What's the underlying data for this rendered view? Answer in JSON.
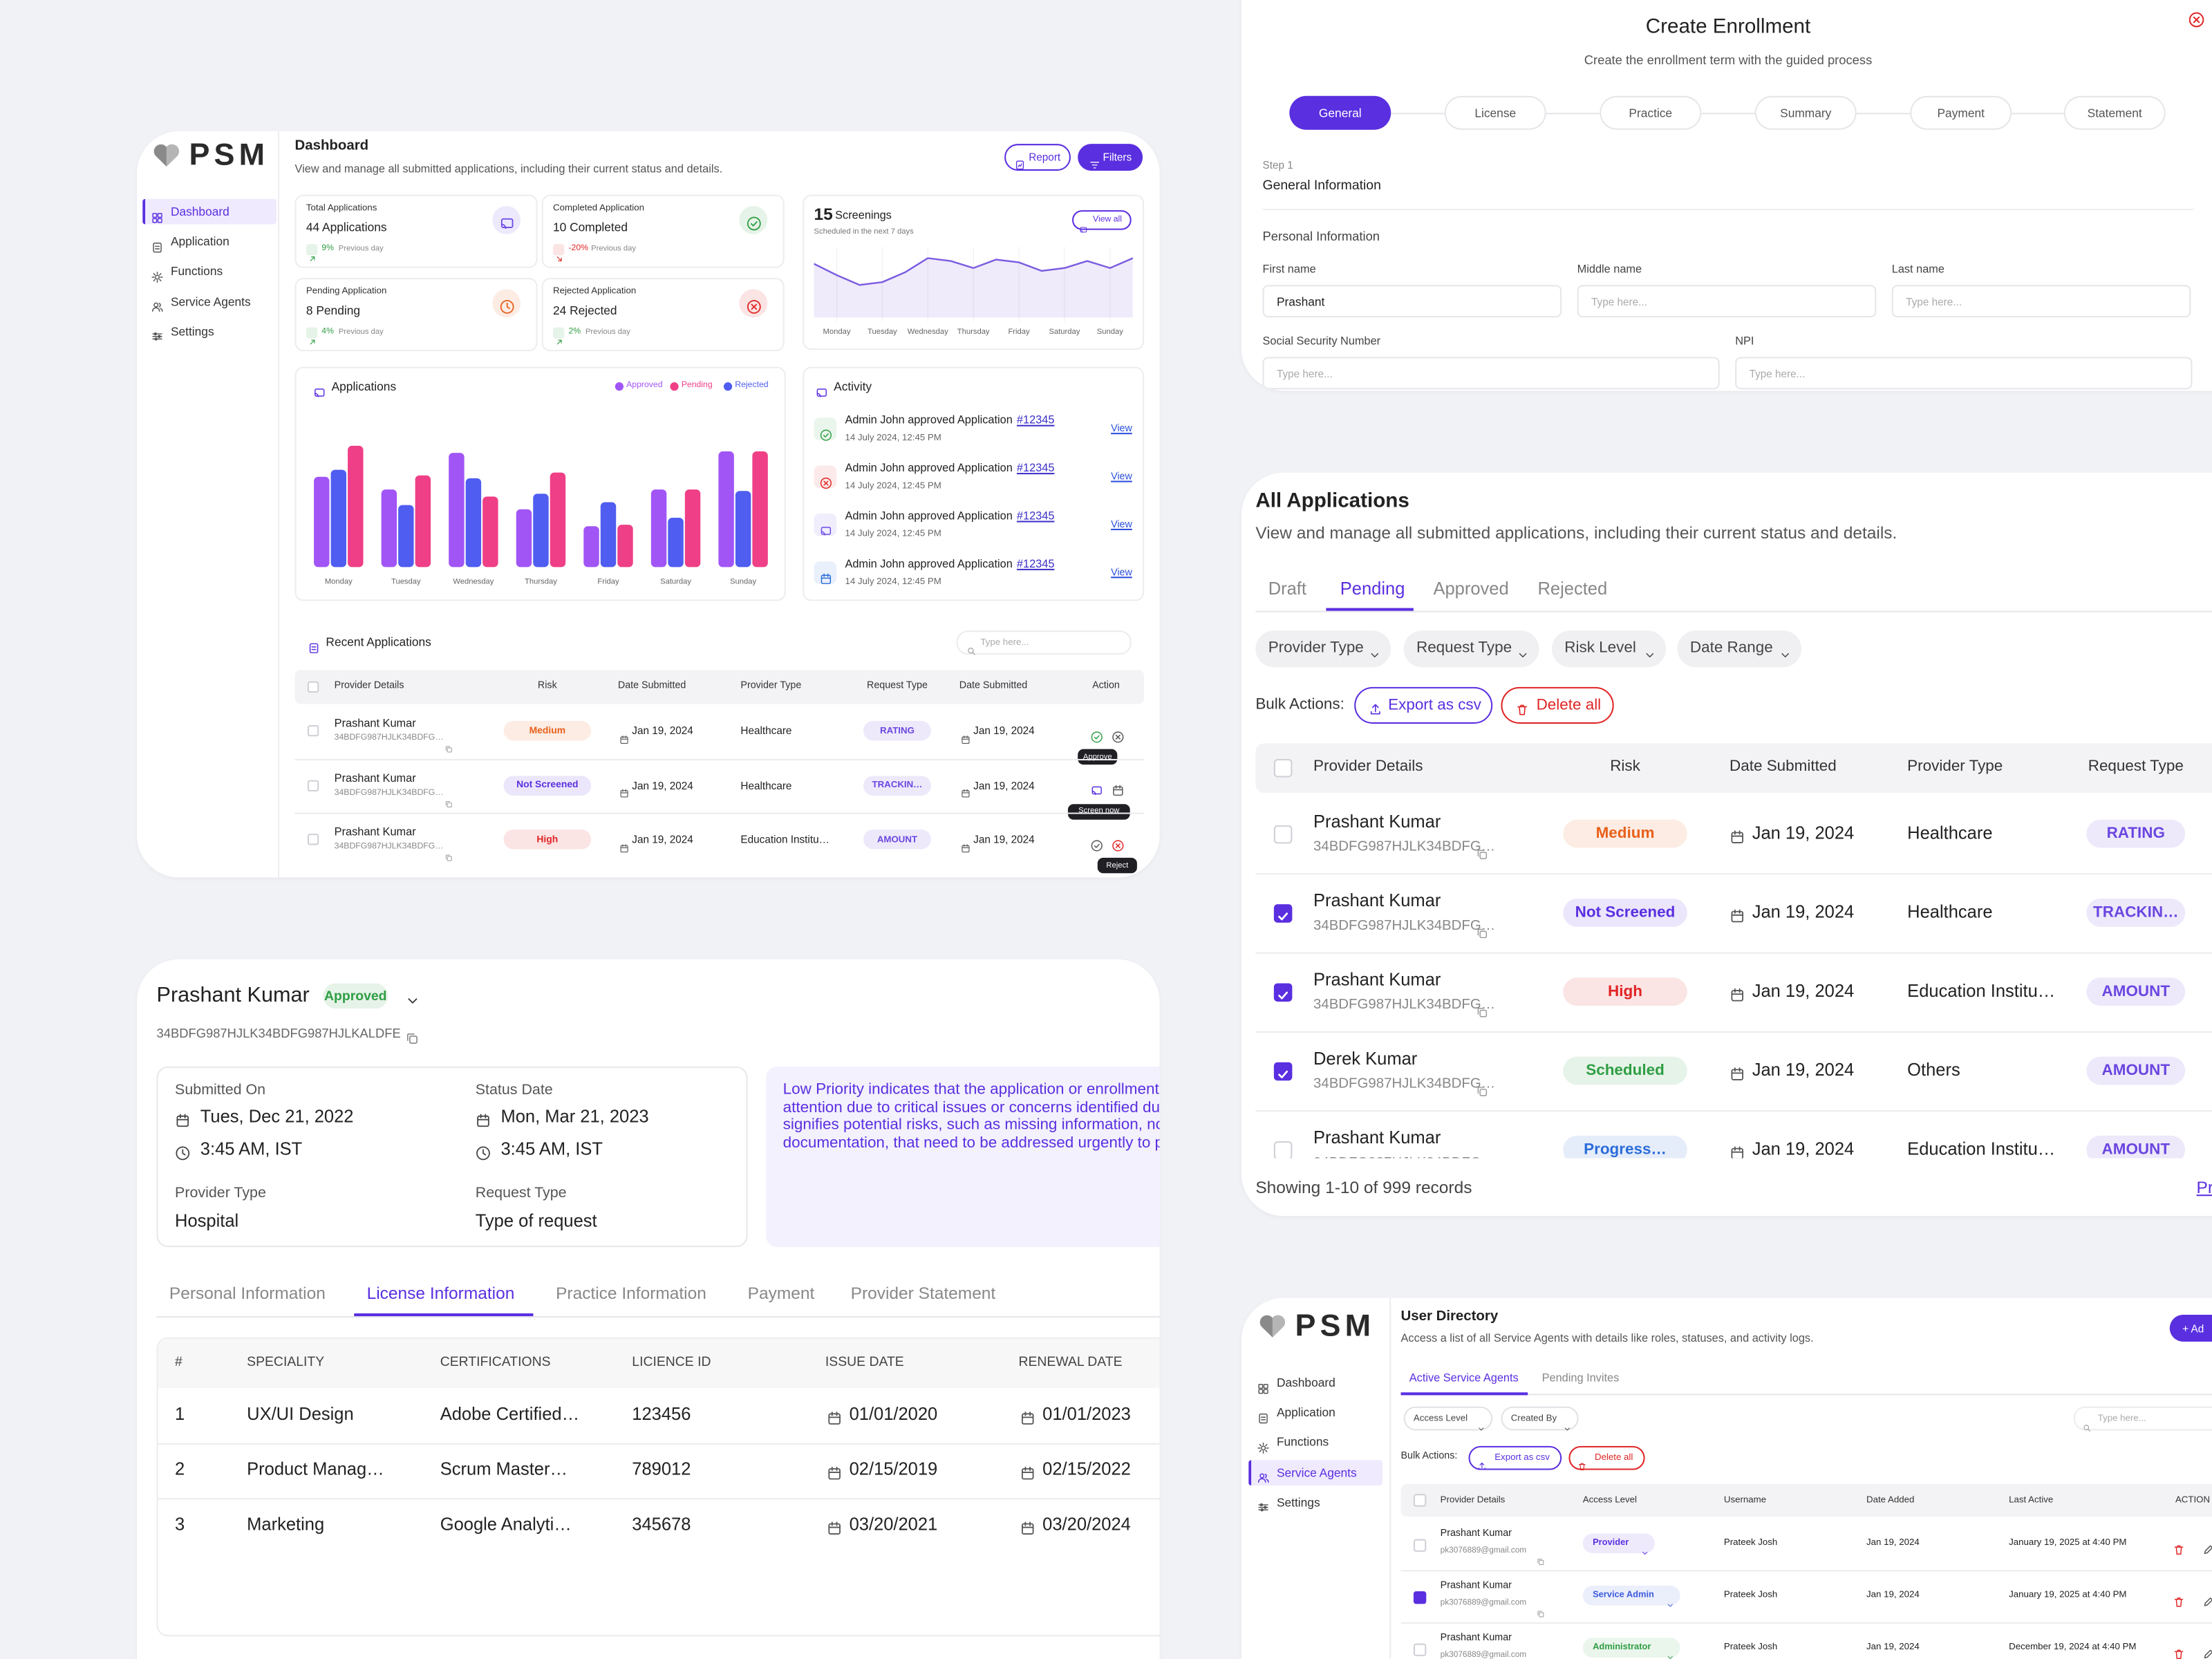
{
  "chart_data": [
    {
      "type": "bar",
      "title": "Applications",
      "categories": [
        "Monday",
        "Tuesday",
        "Wednesday",
        "Thursday",
        "Friday",
        "Saturday",
        "Sunday"
      ],
      "series": [
        {
          "name": "Approved",
          "color": "#a155f5",
          "values": [
            64,
            55,
            81,
            41,
            29,
            55,
            82
          ]
        },
        {
          "name": "Pending",
          "color": "#ef3f86",
          "values": [
            86,
            65,
            50,
            67,
            30,
            55,
            82
          ]
        },
        {
          "name": "Rejected",
          "color": "#4f5df0",
          "values": [
            69,
            44,
            63,
            52,
            46,
            35,
            54
          ]
        }
      ],
      "ylim": [
        0,
        100
      ]
    },
    {
      "type": "line",
      "x": [
        -0.5,
        0,
        0.5,
        1,
        1.5,
        2,
        2.5,
        3,
        3.5,
        4,
        4.5,
        5,
        5.5,
        6,
        6.5
      ],
      "values": [
        38,
        30,
        23,
        25,
        32,
        42,
        40,
        35,
        41,
        39,
        33,
        35,
        40,
        35,
        42
      ],
      "color": "#7b5ce0",
      "xlim": [
        -0.5,
        6.5
      ],
      "ylim": [
        0,
        50
      ],
      "xticks": [
        {
          "value": 0,
          "label": "Monday"
        },
        {
          "value": 1,
          "label": "Tuesday"
        },
        {
          "value": 2,
          "label": "Wednesday"
        },
        {
          "value": 3,
          "label": "Thursday"
        },
        {
          "value": 4,
          "label": "Friday"
        },
        {
          "value": 5,
          "label": "Saturday"
        },
        {
          "value": 6,
          "label": "Sunday"
        }
      ]
    }
  ],
  "dashboard": {
    "logo": "PSM",
    "nav": [
      "Dashboard",
      "Application",
      "Functions",
      "Service Agents",
      "Settings"
    ],
    "active_nav": 0,
    "title": "Dashboard",
    "subtitle": "View and manage all submitted applications, including their current status and details.",
    "buttons": [
      "Report",
      "Filters"
    ],
    "stats": [
      {
        "label": "Total Applications",
        "value": "44 Applications",
        "trend": "9%",
        "note": "Previous day",
        "color": "#6d4ae6",
        "trend_color": "#2f9e44"
      },
      {
        "label": "Completed Application",
        "value": "10 Completed",
        "trend": "-20%",
        "note": "Previous day",
        "color": "#2f9e44",
        "trend_color": "#e02424"
      },
      {
        "label": "Pending Application",
        "value": "8 Pending",
        "trend": "4%",
        "note": "Previous day",
        "color": "#e8601c",
        "trend_color": "#2f9e44"
      },
      {
        "label": "Rejected Application",
        "value": "24 Rejected",
        "trend": "2%",
        "note": "Previous day",
        "color": "#e02424",
        "trend_color": "#2f9e44"
      }
    ],
    "screenings": {
      "count": "15",
      "title": "Screenings",
      "subtitle": "Scheduled in the next 7 days",
      "button": "View all"
    },
    "activity": {
      "title": "Activity",
      "items": [
        {
          "text": "Admin John approved Application",
          "link": "#12345",
          "date": "14 July 2024, 12:45 PM",
          "action": "View",
          "color": "#2f9e44"
        },
        {
          "text": "Admin John approved Application",
          "link": "#12345",
          "date": "14 July 2024, 12:45 PM",
          "action": "View",
          "color": "#e02424"
        },
        {
          "text": "Admin John approved Application",
          "link": "#12345",
          "date": "14 July 2024, 12:45 PM",
          "action": "View",
          "color": "#6d4ae6"
        },
        {
          "text": "Admin John approved Application",
          "link": "#12345",
          "date": "14 July 2024, 12:45 PM",
          "action": "View",
          "color": "#2b6cd9"
        }
      ]
    },
    "recent": {
      "title": "Recent Applications",
      "search": "Type here...",
      "columns": [
        "Provider Details",
        "Risk",
        "Date Submitted",
        "Provider Type",
        "Request Type",
        "Date Submitted",
        "Action"
      ],
      "rows": [
        {
          "name": "Prashant Kumar",
          "id": "34BDFG987HJLK34BDFG…",
          "risk": {
            "label": "Medium",
            "color": "#e8601c"
          },
          "date": "Jan 19, 2024",
          "provider_type": "Healthcare",
          "request_type": "RATING",
          "date2": "Jan 19, 2024",
          "tooltip": "Approve"
        },
        {
          "name": "Prashant Kumar",
          "id": "34BDFG987HJLK34BDFG…",
          "risk": {
            "label": "Not Screened",
            "color": "#5a2fe0"
          },
          "date": "Jan 19, 2024",
          "provider_type": "Healthcare",
          "request_type": "TRACKIN…",
          "date2": "Jan 19, 2024",
          "tooltip": "Screen now"
        },
        {
          "name": "Prashant Kumar",
          "id": "34BDFG987HJLK34BDFG…",
          "risk": {
            "label": "High",
            "color": "#e02424"
          },
          "date": "Jan 19, 2024",
          "provider_type": "Education Institu…",
          "request_type": "AMOUNT",
          "date2": "Jan 19, 2024",
          "tooltip": "Reject"
        }
      ]
    }
  },
  "enrollment": {
    "title": "Create Enrollment",
    "subtitle": "Create the enrollment term with the guided process",
    "steps": [
      "General",
      "License",
      "Practice",
      "Summary",
      "Payment",
      "Statement"
    ],
    "active_step": 0,
    "step_label": "Step 1",
    "step_title": "General Information",
    "section": "Personal Information",
    "fields": [
      {
        "label": "First name",
        "value": "Prashant"
      },
      {
        "label": "Middle name",
        "placeholder": "Type here..."
      },
      {
        "label": "Last name",
        "placeholder": "Type here..."
      },
      {
        "label": "Social Security Number",
        "placeholder": "Type here..."
      },
      {
        "label": "NPI",
        "placeholder": "Type here..."
      }
    ]
  },
  "all_applications": {
    "title": "All Applications",
    "subtitle": "View and manage all submitted applications, including their current status and details.",
    "tabs": [
      "Draft",
      "Pending",
      "Approved",
      "Rejected"
    ],
    "active_tab": 1,
    "filters": [
      "Provider Type",
      "Request Type",
      "Risk Level",
      "Date Range"
    ],
    "bulk_label": "Bulk Actions:",
    "export": "Export as csv",
    "delete": "Delete all",
    "columns": [
      "Provider Details",
      "Risk",
      "Date Submitted",
      "Provider Type",
      "Request Type"
    ],
    "rows": [
      {
        "name": "Prashant Kumar",
        "id": "34BDFG987HJLK34BDFG…",
        "risk": {
          "label": "Medium",
          "color": "#e8601c"
        },
        "date": "Jan 19, 2024",
        "provider_type": "Healthcare",
        "request_type": "RATING",
        "checked": false
      },
      {
        "name": "Prashant Kumar",
        "id": "34BDFG987HJLK34BDFG…",
        "risk": {
          "label": "Not Screened",
          "color": "#5a2fe0"
        },
        "date": "Jan 19, 2024",
        "provider_type": "Healthcare",
        "request_type": "TRACKIN…",
        "checked": true
      },
      {
        "name": "Prashant Kumar",
        "id": "34BDFG987HJLK34BDFG…",
        "risk": {
          "label": "High",
          "color": "#e02424"
        },
        "date": "Jan 19, 2024",
        "provider_type": "Education Institu…",
        "request_type": "AMOUNT",
        "checked": true
      },
      {
        "name": "Derek Kumar",
        "id": "34BDFG987HJLK34BDFG…",
        "risk": {
          "label": "Scheduled",
          "color": "#2f9e44"
        },
        "date": "Jan 19, 2024",
        "provider_type": "Others",
        "request_type": "AMOUNT",
        "checked": true
      },
      {
        "name": "Prashant Kumar",
        "id": "34BDFG987HJLK34BDFG…",
        "risk": {
          "label": "Progress…",
          "color": "#2b6cd9"
        },
        "date": "Jan 19, 2024",
        "provider_type": "Education Institu…",
        "request_type": "AMOUNT",
        "checked": false
      }
    ],
    "footer": "Showing 1-10 of 999 records",
    "pager": "Pr"
  },
  "detail": {
    "name": "Prashant Kumar",
    "status": "Approved",
    "id": "34BDFG987HJLK34BDFG987HJLKALDFE",
    "dates": [
      {
        "label": "Submitted On",
        "date": "Tues, Dec 21, 2022",
        "time": "3:45 AM, IST"
      },
      {
        "label": "Status Date",
        "date": "Mon, Mar 21, 2023",
        "time": "3:45 AM, IST"
      }
    ],
    "fields": [
      {
        "label": "Provider Type",
        "value": "Hospital"
      },
      {
        "label": "Request Type",
        "value": "Type of request"
      }
    ],
    "note": [
      "Low Priority indicates that the application or enrollment r",
      "attention due to critical issues or concerns identified dur",
      "signifies potential risks, such as missing information, non",
      "documentation, that need to be addressed urgently to pr"
    ],
    "tabs": [
      "Personal Information",
      "License Information",
      "Practice Information",
      "Payment",
      "Provider Statement"
    ],
    "active_tab": 1,
    "table": {
      "columns": [
        "#",
        "SPECIALITY",
        "CERTIFICATIONS",
        "LICIENCE ID",
        "ISSUE DATE",
        "RENEWAL DATE"
      ],
      "rows": [
        [
          "1",
          "UX/UI Design",
          "Adobe Certified…",
          "123456",
          "01/01/2020",
          "01/01/2023"
        ],
        [
          "2",
          "Product Manag…",
          "Scrum Master…",
          "789012",
          "02/15/2019",
          "02/15/2022"
        ],
        [
          "3",
          "Marketing",
          "Google Analyti…",
          "345678",
          "03/20/2021",
          "03/20/2024"
        ]
      ]
    }
  },
  "user_directory": {
    "logo": "PSM",
    "nav": [
      "Dashboard",
      "Application",
      "Functions",
      "Service Agents",
      "Settings"
    ],
    "active_nav": 3,
    "title": "User Directory",
    "subtitle": "Access a list of all Service Agents with details like roles, statuses, and activity logs.",
    "add_button": "+ Ad",
    "tabs": [
      "Active Service Agents",
      "Pending Invites"
    ],
    "active_tab": 0,
    "filters": [
      "Access Level",
      "Created By"
    ],
    "search": "Type here...",
    "bulk_label": "Bulk Actions:",
    "export": "Export as csv",
    "delete": "Delete all",
    "columns": [
      "Provider Details",
      "Access Level",
      "Username",
      "Date Added",
      "Last Active",
      "ACTION"
    ],
    "rows": [
      {
        "name": "Prashant Kumar",
        "email": "pk3076889@gmail.com",
        "access": {
          "label": "Provider",
          "color": "#5a2fe0"
        },
        "username": "Prateek Josh",
        "added": "Jan 19, 2024",
        "last_active": "January 19, 2025 at 4:40 PM",
        "checked": false
      },
      {
        "name": "Prashant Kumar",
        "email": "pk3076889@gmail.com",
        "access": {
          "label": "Service Admin",
          "color": "#3b5bdb"
        },
        "username": "Prateek Josh",
        "added": "Jan 19, 2024",
        "last_active": "January 19, 2025 at 4:40 PM",
        "checked": true
      },
      {
        "name": "Prashant Kumar",
        "email": "pk3076889@gmail.com",
        "access": {
          "label": "Administrator",
          "color": "#2f9e44"
        },
        "username": "Prateek Josh",
        "added": "Jan 19, 2024",
        "last_active": "December 19, 2024 at 4:40 PM",
        "checked": false
      }
    ]
  }
}
